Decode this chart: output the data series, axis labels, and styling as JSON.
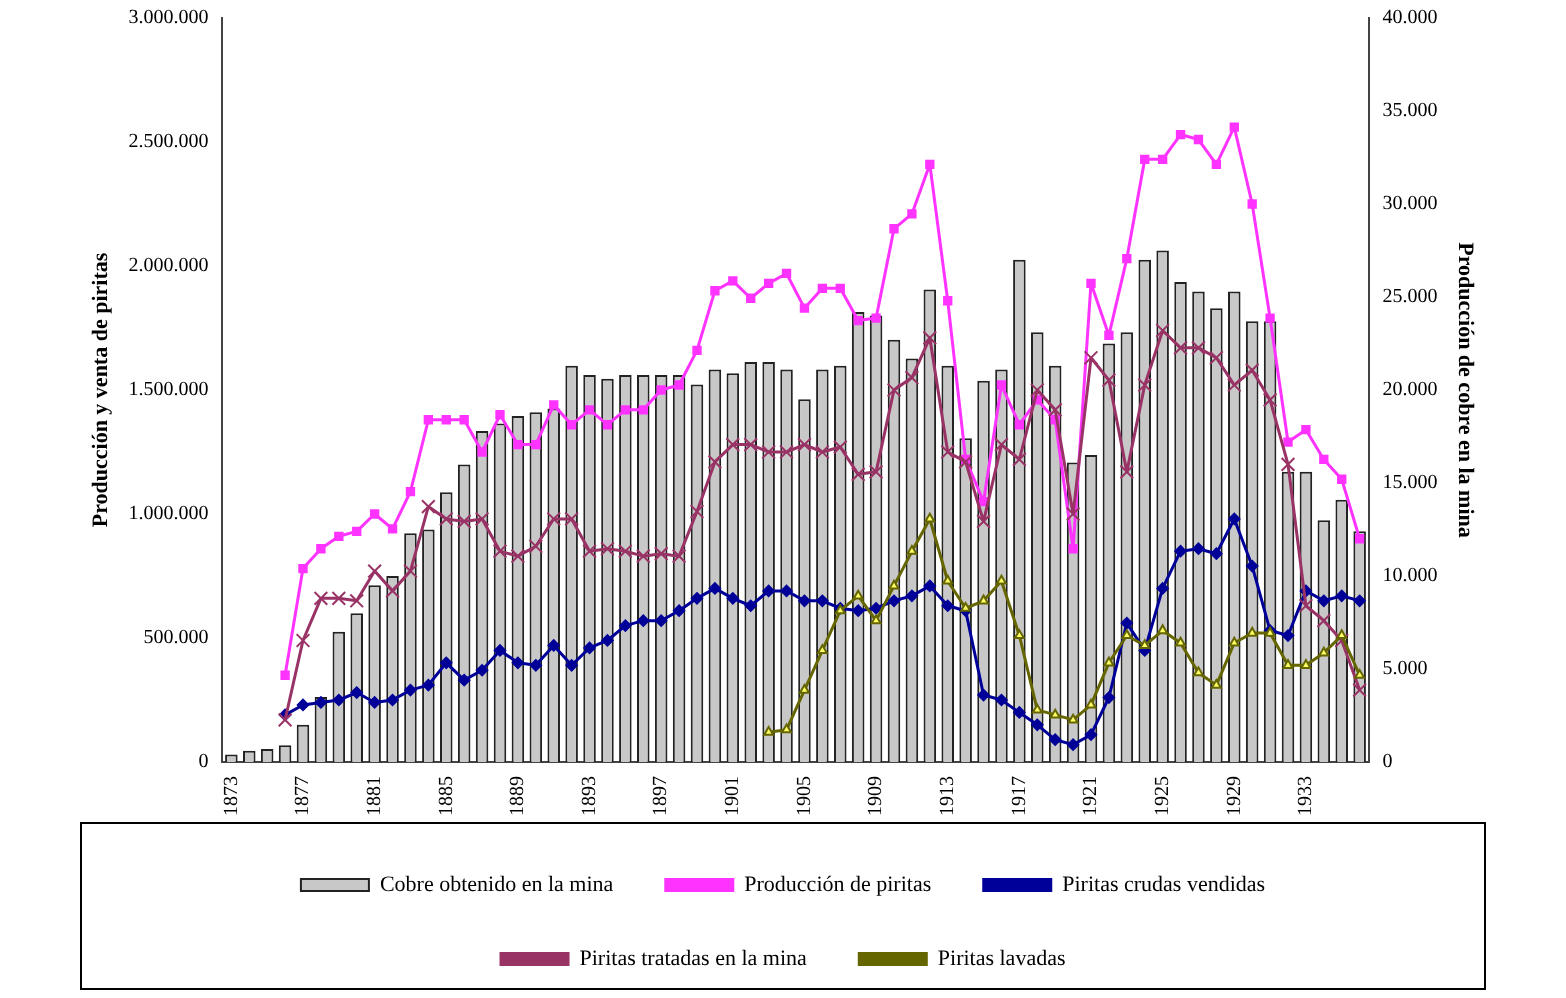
{
  "chart_data": {
    "type": "bar",
    "xlabel": null,
    "ylabel": "Producción y venta de piritas",
    "y2label": "Producción de cobre en la mina",
    "categories": [
      "1873",
      null,
      null,
      null,
      "1877",
      null,
      null,
      null,
      "1881",
      null,
      null,
      null,
      "1885",
      null,
      null,
      null,
      "1889",
      null,
      null,
      null,
      "1893",
      null,
      null,
      null,
      "1897",
      null,
      null,
      null,
      "1901",
      null,
      null,
      null,
      "1905",
      null,
      null,
      null,
      "1909",
      null,
      null,
      null,
      "1913",
      null,
      null,
      null,
      "1917",
      null,
      null,
      null,
      "1921",
      null,
      null,
      null,
      "1925",
      null,
      null,
      null,
      "1929",
      null,
      null,
      null,
      "1933",
      null,
      null,
      null
    ],
    "ylim": [
      0,
      3000000
    ],
    "yticks": [
      0,
      {
        "value": 500000,
        "label": "500.000"
      },
      {
        "value": 1000000,
        "label": "1.000.000"
      },
      {
        "value": 1500000,
        "label": "1.500.000"
      },
      {
        "value": 2000000,
        "label": "2.000.000"
      },
      {
        "value": 2500000,
        "label": "2.500.000"
      },
      {
        "value": 3000000,
        "label": "3.000.000"
      }
    ],
    "y2lim": [
      0,
      40000
    ],
    "y2ticks": [
      0,
      {
        "value": 5000,
        "label": "5.000"
      },
      {
        "value": 10000,
        "label": "10.000"
      },
      {
        "value": 15000,
        "label": "15.000"
      },
      {
        "value": 20000,
        "label": "20.000"
      },
      {
        "value": 25000,
        "label": "25.000"
      },
      {
        "value": 30000,
        "label": "30.000"
      },
      {
        "value": 35000,
        "label": "35.000"
      },
      {
        "value": 40000,
        "label": "40.000"
      }
    ],
    "legend": "bottom",
    "grid": false,
    "series": [
      {
        "name": "Cobre obtenido en la mina",
        "axis": "y2",
        "color": "#c8c8c8",
        "values": [
          400,
          600,
          700,
          900,
          2000,
          3500,
          7000,
          8000,
          9500,
          10000,
          12300,
          12500,
          14500,
          16000,
          17800,
          18200,
          18600,
          18800,
          19000,
          21300,
          20800,
          20600,
          20800,
          20800,
          20800,
          20800,
          20300,
          21100,
          20900,
          21500,
          21500,
          21100,
          19500,
          21100,
          21300,
          24200,
          24000,
          22700,
          21700,
          25400,
          21300,
          17400,
          20500,
          21100,
          27000,
          23100,
          21300,
          16100,
          16500,
          22500,
          23100,
          27000,
          27500,
          25800,
          25300,
          24400,
          25300,
          23700,
          23700,
          15600,
          15600,
          13000,
          14100,
          12400
        ]
      },
      {
        "name": "Producción de piritas",
        "type": "line",
        "marker": "square",
        "color": "#ff33ff",
        "values": [
          null,
          null,
          null,
          350000,
          780000,
          860000,
          910000,
          930000,
          1000000,
          940000,
          1090000,
          1380000,
          1380000,
          1380000,
          1250000,
          1400000,
          1280000,
          1280000,
          1440000,
          1360000,
          1420000,
          1360000,
          1420000,
          1420000,
          1500000,
          1520000,
          1660000,
          1900000,
          1940000,
          1870000,
          1930000,
          1970000,
          1830000,
          1910000,
          1910000,
          1780000,
          1790000,
          2150000,
          2210000,
          2410000,
          1860000,
          1220000,
          1050000,
          1520000,
          1360000,
          1460000,
          1380000,
          860000,
          1930000,
          1720000,
          2030000,
          2430000,
          2430000,
          2530000,
          2510000,
          2410000,
          2560000,
          2250000,
          1790000,
          1290000,
          1340000,
          1220000,
          1140000,
          900000
        ]
      },
      {
        "name": "Piritas crudas vendidas",
        "type": "line",
        "marker": "diamond",
        "color": "#000099",
        "values": [
          null,
          null,
          null,
          190000,
          230000,
          240000,
          250000,
          280000,
          240000,
          250000,
          290000,
          310000,
          400000,
          330000,
          370000,
          450000,
          400000,
          390000,
          470000,
          390000,
          460000,
          490000,
          550000,
          570000,
          570000,
          610000,
          660000,
          700000,
          660000,
          630000,
          690000,
          690000,
          650000,
          650000,
          620000,
          610000,
          620000,
          650000,
          670000,
          710000,
          630000,
          610000,
          270000,
          250000,
          200000,
          150000,
          90000,
          70000,
          110000,
          260000,
          560000,
          450000,
          700000,
          850000,
          860000,
          840000,
          980000,
          790000,
          530000,
          510000,
          690000,
          650000,
          670000,
          650000
        ]
      },
      {
        "name": "Piritas tratadas en la mina",
        "type": "line",
        "marker": "cross",
        "color": "#993366",
        "values": [
          null,
          null,
          null,
          170000,
          490000,
          660000,
          660000,
          650000,
          770000,
          690000,
          770000,
          1030000,
          980000,
          970000,
          980000,
          850000,
          830000,
          870000,
          980000,
          980000,
          850000,
          860000,
          850000,
          830000,
          840000,
          830000,
          1010000,
          1210000,
          1280000,
          1280000,
          1250000,
          1250000,
          1280000,
          1250000,
          1270000,
          1160000,
          1170000,
          1500000,
          1550000,
          1710000,
          1250000,
          1210000,
          970000,
          1280000,
          1220000,
          1500000,
          1420000,
          1000000,
          1630000,
          1540000,
          1170000,
          1520000,
          1740000,
          1670000,
          1670000,
          1630000,
          1520000,
          1580000,
          1460000,
          1200000,
          630000,
          570000,
          490000,
          290000
        ]
      },
      {
        "name": "Piritas lavadas",
        "type": "line",
        "marker": "triangle",
        "color": "#666600",
        "values": [
          null,
          null,
          null,
          null,
          null,
          null,
          null,
          null,
          null,
          null,
          null,
          null,
          null,
          null,
          null,
          null,
          null,
          null,
          null,
          null,
          null,
          null,
          null,
          null,
          null,
          null,
          null,
          null,
          null,
          null,
          120000,
          130000,
          290000,
          450000,
          610000,
          670000,
          570000,
          710000,
          850000,
          980000,
          730000,
          620000,
          650000,
          730000,
          510000,
          210000,
          190000,
          170000,
          230000,
          400000,
          510000,
          470000,
          530000,
          480000,
          360000,
          310000,
          480000,
          520000,
          520000,
          390000,
          390000,
          440000,
          510000,
          350000
        ]
      }
    ]
  }
}
